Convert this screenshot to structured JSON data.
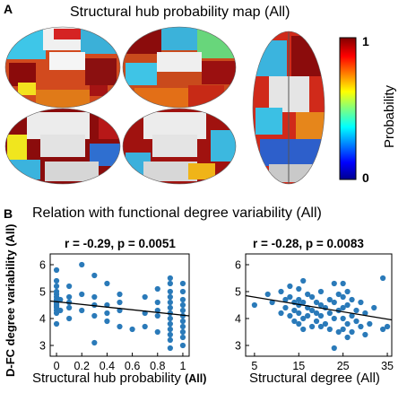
{
  "panel_a": {
    "letter": "A",
    "title": "Structural hub probability map (All)",
    "colorbar": {
      "label": "Probability",
      "max_label": "1",
      "min_label": "0"
    }
  },
  "panel_b": {
    "letter": "B",
    "title": "Relation with functional degree variability (All)"
  },
  "chart_data": [
    {
      "type": "scatter",
      "stat_label": "r = -0.29, p = 0.0051",
      "r": -0.29,
      "p": "0.0051",
      "xlabel": "Structural hub probability",
      "xlabel_suffix": "(All)",
      "ylabel": "D-FC degree variability (All)",
      "xlim": [
        -0.05,
        1.05
      ],
      "ylim": [
        2.6,
        6.4
      ],
      "xticks": [
        0,
        0.2,
        0.4,
        0.6,
        0.8,
        1
      ],
      "xtick_labels": [
        "0",
        "0.2",
        "0.4",
        "0.6",
        "0.8",
        "1"
      ],
      "yticks": [
        3,
        4,
        5,
        6
      ],
      "yticklabels": [
        "3",
        "4",
        "5",
        "6"
      ],
      "fit_line": {
        "x": [
          -0.05,
          1.05
        ],
        "y": [
          4.65,
          4.1
        ]
      },
      "marker_color": "#2a7ab9",
      "points": [
        [
          0,
          5.8
        ],
        [
          0,
          5.4
        ],
        [
          0,
          5.2
        ],
        [
          0,
          5.0
        ],
        [
          0,
          4.9
        ],
        [
          0,
          4.8
        ],
        [
          0,
          4.7
        ],
        [
          0,
          4.65
        ],
        [
          0,
          4.6
        ],
        [
          0,
          4.55
        ],
        [
          0,
          4.5
        ],
        [
          0,
          4.45
        ],
        [
          0,
          4.4
        ],
        [
          0,
          4.3
        ],
        [
          0,
          4.2
        ],
        [
          0,
          3.8
        ],
        [
          0.03,
          4.7
        ],
        [
          0.03,
          4.3
        ],
        [
          0.1,
          5.2
        ],
        [
          0.1,
          4.8
        ],
        [
          0.1,
          4.6
        ],
        [
          0.1,
          4.4
        ],
        [
          0.1,
          4.0
        ],
        [
          0.2,
          6.0
        ],
        [
          0.2,
          4.9
        ],
        [
          0.2,
          4.3
        ],
        [
          0.3,
          5.6
        ],
        [
          0.3,
          4.8
        ],
        [
          0.3,
          4.5
        ],
        [
          0.3,
          4.1
        ],
        [
          0.3,
          3.1
        ],
        [
          0.4,
          5.3
        ],
        [
          0.4,
          4.5
        ],
        [
          0.4,
          4.2
        ],
        [
          0.4,
          3.9
        ],
        [
          0.5,
          4.9
        ],
        [
          0.5,
          4.6
        ],
        [
          0.5,
          4.3
        ],
        [
          0.5,
          3.7
        ],
        [
          0.6,
          3.6
        ],
        [
          0.7,
          4.8
        ],
        [
          0.7,
          4.2
        ],
        [
          0.7,
          3.7
        ],
        [
          0.8,
          5.1
        ],
        [
          0.8,
          4.6
        ],
        [
          0.8,
          4.3
        ],
        [
          0.8,
          4.1
        ],
        [
          0.8,
          3.5
        ],
        [
          0.9,
          5.5
        ],
        [
          0.9,
          5.3
        ],
        [
          0.9,
          5.0
        ],
        [
          0.9,
          4.8
        ],
        [
          0.9,
          4.6
        ],
        [
          0.9,
          4.4
        ],
        [
          0.9,
          4.2
        ],
        [
          0.9,
          4.0
        ],
        [
          0.9,
          3.8
        ],
        [
          0.9,
          3.6
        ],
        [
          0.9,
          3.4
        ],
        [
          0.9,
          3.2
        ],
        [
          0.9,
          2.9
        ],
        [
          1.0,
          5.3
        ],
        [
          1.0,
          5.0
        ],
        [
          1.0,
          4.7
        ],
        [
          1.0,
          4.5
        ],
        [
          1.0,
          4.3
        ],
        [
          1.0,
          4.1
        ],
        [
          1.0,
          3.9
        ],
        [
          1.0,
          3.7
        ],
        [
          1.0,
          3.5
        ],
        [
          1.0,
          3.3
        ],
        [
          1.0,
          3.0
        ]
      ]
    },
    {
      "type": "scatter",
      "stat_label": "r = -0.28, p = 0.0083",
      "r": -0.28,
      "p": "0.0083",
      "xlabel": "Structural degree (All)",
      "xlim": [
        3,
        36
      ],
      "ylim": [
        2.6,
        6.4
      ],
      "xticks": [
        5,
        15,
        25,
        35
      ],
      "xtick_labels": [
        "5",
        "15",
        "25",
        "35"
      ],
      "yticks": [
        3,
        4,
        5,
        6
      ],
      "fit_line": {
        "x": [
          3,
          36
        ],
        "y": [
          4.85,
          3.95
        ]
      },
      "marker_color": "#2a7ab9",
      "points": [
        [
          5,
          4.5
        ],
        [
          8,
          4.9
        ],
        [
          9,
          4.6
        ],
        [
          11,
          5.0
        ],
        [
          11,
          4.2
        ],
        [
          12,
          4.7
        ],
        [
          12,
          4.4
        ],
        [
          13,
          5.2
        ],
        [
          13,
          4.8
        ],
        [
          13,
          4.1
        ],
        [
          14,
          4.6
        ],
        [
          14,
          4.3
        ],
        [
          14,
          3.9
        ],
        [
          15,
          5.1
        ],
        [
          15,
          4.7
        ],
        [
          15,
          4.5
        ],
        [
          15,
          4.2
        ],
        [
          15,
          3.8
        ],
        [
          16,
          5.4
        ],
        [
          16,
          4.6
        ],
        [
          16,
          4.0
        ],
        [
          16,
          3.6
        ],
        [
          17,
          4.9
        ],
        [
          17,
          4.4
        ],
        [
          17,
          4.1
        ],
        [
          18,
          4.8
        ],
        [
          18,
          4.3
        ],
        [
          18,
          3.7
        ],
        [
          19,
          4.6
        ],
        [
          19,
          4.2
        ],
        [
          19,
          3.9
        ],
        [
          20,
          5.0
        ],
        [
          20,
          4.5
        ],
        [
          20,
          4.1
        ],
        [
          20,
          3.7
        ],
        [
          21,
          4.4
        ],
        [
          21,
          3.8
        ],
        [
          22,
          4.7
        ],
        [
          22,
          4.2
        ],
        [
          22,
          3.6
        ],
        [
          23,
          5.3
        ],
        [
          23,
          4.6
        ],
        [
          23,
          4.0
        ],
        [
          24,
          4.9
        ],
        [
          24,
          4.3
        ],
        [
          24,
          3.5
        ],
        [
          25,
          5.3
        ],
        [
          25,
          4.8
        ],
        [
          25,
          4.4
        ],
        [
          25,
          4.0
        ],
        [
          25,
          3.6
        ],
        [
          26,
          5.0
        ],
        [
          26,
          4.5
        ],
        [
          26,
          3.8
        ],
        [
          26,
          3.3
        ],
        [
          27,
          4.7
        ],
        [
          27,
          4.1
        ],
        [
          27,
          3.5
        ],
        [
          28,
          4.3
        ],
        [
          28,
          3.9
        ],
        [
          29,
          4.6
        ],
        [
          29,
          3.7
        ],
        [
          30,
          4.2
        ],
        [
          30,
          3.4
        ],
        [
          31,
          3.8
        ],
        [
          32,
          4.4
        ],
        [
          34,
          5.5
        ],
        [
          34,
          3.6
        ],
        [
          35,
          3.7
        ],
        [
          23,
          2.9
        ]
      ]
    }
  ]
}
